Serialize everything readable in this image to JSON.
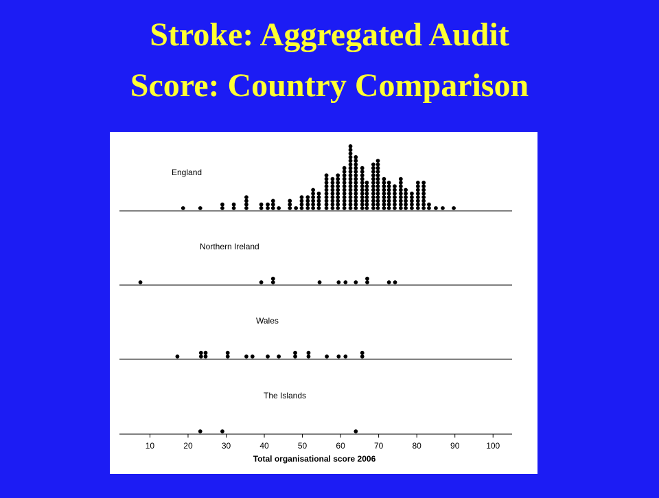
{
  "chart_data": {
    "type": "dot",
    "title": [
      "Stroke: Aggregated Audit",
      "Score: Country Comparison"
    ],
    "xlabel": "Total organisational score 2006",
    "xlim": [
      2,
      105
    ],
    "xticks": [
      10,
      20,
      30,
      40,
      50,
      60,
      70,
      80,
      90,
      100
    ],
    "series": [
      {
        "name": "England",
        "color": "#000000",
        "x": [
          18.7,
          23.2,
          29,
          32,
          35.3,
          39.2,
          40.9,
          42.3,
          43.8,
          46.7,
          48.3,
          49.8,
          51.4,
          52.8,
          54.3,
          56.3,
          57.9,
          59.3,
          61,
          62.6,
          64,
          65.7,
          66.9,
          68.6,
          69.8,
          71.4,
          72.7,
          74.2,
          75.8,
          77.1,
          78.7,
          80.3,
          81.8,
          83.2,
          85,
          86.8,
          89.7
        ],
        "values": [
          1,
          1,
          2,
          2,
          4,
          2,
          2,
          3,
          1,
          3,
          1,
          4,
          4,
          6,
          5,
          10,
          9,
          10,
          12,
          18,
          15,
          12,
          8,
          13,
          14,
          9,
          8,
          7,
          9,
          6,
          5,
          8,
          8,
          2,
          1,
          1,
          1
        ]
      },
      {
        "name": "Northern Ireland",
        "color": "#000000",
        "x": [
          7.5,
          39.2,
          42.3,
          54.5,
          59.5,
          61.3,
          64,
          67,
          72.7,
          74.3
        ],
        "values": [
          1,
          1,
          2,
          1,
          1,
          1,
          1,
          2,
          1,
          1
        ]
      },
      {
        "name": "Wales",
        "color": "#000000",
        "x": [
          17.2,
          23.4,
          24.6,
          30.4,
          35.3,
          36.9,
          40.9,
          43.8,
          48.1,
          51.6,
          56.4,
          59.5,
          61.3,
          65.7
        ],
        "values": [
          1,
          2,
          2,
          2,
          1,
          1,
          1,
          1,
          2,
          2,
          1,
          1,
          1,
          2
        ]
      },
      {
        "name": "The Islands",
        "color": "#000000",
        "x": [
          23.2,
          29,
          64
        ],
        "values": [
          1,
          1,
          1
        ]
      }
    ]
  }
}
